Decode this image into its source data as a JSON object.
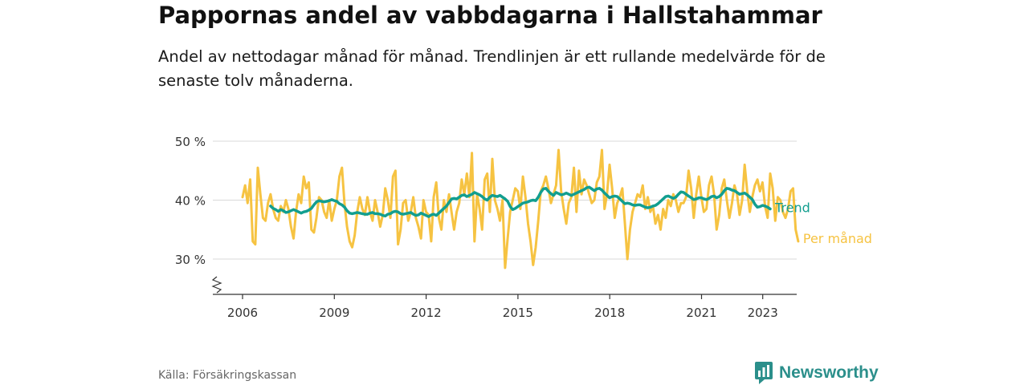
{
  "title": "Pappornas andel av vabbdagarna i Hallstahammar",
  "subtitle": "Andel av nettodagar månad för månad. Trendlinjen är ett rullande medelvärde för de senaste tolv månaderna.",
  "source": "Källa: Försäkringskassan",
  "brand": {
    "name": "Newsworthy",
    "icon": "newsworthy-logo-icon",
    "color": "#2b8f8b"
  },
  "colors": {
    "monthly": "#f6c342",
    "trend": "#129e8f",
    "grid": "#d9d9d9",
    "axis": "#333333"
  },
  "chart_data": {
    "type": "line",
    "x_unit": "year (decimal, monthly points)",
    "y_unit": "%",
    "ylim": [
      24,
      50
    ],
    "xlim": [
      2005.7,
      2024.0
    ],
    "y_ticks": [
      {
        "value": 30,
        "label": "30 %"
      },
      {
        "value": 40,
        "label": "40 %"
      },
      {
        "value": 50,
        "label": "50 %"
      }
    ],
    "x_ticks": [
      {
        "value": 2006,
        "label": "2006"
      },
      {
        "value": 2009,
        "label": "2009"
      },
      {
        "value": 2012,
        "label": "2012"
      },
      {
        "value": 2015,
        "label": "2015"
      },
      {
        "value": 2018,
        "label": "2018"
      },
      {
        "value": 2021,
        "label": "2021"
      },
      {
        "value": 2023,
        "label": "2023"
      }
    ],
    "grid": true,
    "axis_break": true,
    "series": [
      {
        "name": "Per månad",
        "key": "monthly",
        "x_start": 2006.0,
        "x_step": 0.0833,
        "values": [
          40.5,
          42.5,
          39.5,
          43.5,
          33.0,
          32.5,
          45.5,
          41.0,
          37.0,
          36.5,
          39.5,
          41.0,
          38.5,
          37.0,
          36.5,
          39.0,
          38.0,
          40.0,
          38.5,
          35.5,
          33.5,
          38.0,
          41.0,
          39.5,
          44.0,
          42.0,
          43.0,
          35.0,
          34.5,
          37.0,
          40.5,
          40.0,
          38.0,
          37.0,
          40.0,
          36.5,
          38.5,
          40.0,
          44.0,
          45.5,
          39.5,
          35.5,
          33.0,
          32.0,
          34.0,
          38.0,
          40.5,
          38.5,
          37.5,
          40.5,
          38.0,
          36.5,
          40.0,
          38.0,
          35.5,
          37.5,
          42.0,
          40.0,
          37.0,
          44.0,
          45.0,
          32.5,
          35.0,
          39.5,
          40.0,
          36.5,
          38.0,
          40.5,
          37.0,
          35.5,
          33.5,
          40.0,
          38.0,
          37.5,
          33.0,
          40.5,
          43.0,
          37.0,
          35.0,
          40.0,
          38.0,
          41.0,
          38.0,
          35.0,
          38.0,
          39.5,
          43.5,
          41.0,
          44.5,
          40.5,
          48.0,
          33.0,
          41.0,
          38.5,
          35.0,
          43.5,
          44.5,
          38.0,
          47.0,
          40.0,
          38.5,
          36.5,
          40.0,
          28.5,
          33.5,
          38.0,
          40.0,
          42.0,
          41.5,
          38.5,
          44.0,
          40.5,
          36.0,
          33.0,
          29.0,
          32.0,
          36.5,
          41.5,
          42.5,
          44.0,
          42.0,
          39.5,
          41.0,
          42.5,
          48.5,
          41.5,
          38.5,
          36.0,
          39.5,
          40.5,
          45.5,
          38.0,
          45.0,
          41.0,
          43.5,
          42.5,
          41.0,
          39.5,
          40.0,
          43.0,
          44.0,
          48.5,
          38.5,
          41.0,
          46.0,
          42.0,
          37.0,
          39.5,
          40.5,
          42.0,
          36.0,
          30.0,
          35.0,
          38.0,
          39.5,
          41.0,
          40.5,
          42.5,
          38.5,
          40.5,
          38.0,
          39.0,
          36.0,
          37.5,
          35.0,
          38.5,
          37.0,
          40.0,
          39.0,
          41.0,
          40.0,
          38.0,
          39.5,
          39.5,
          40.5,
          45.0,
          42.0,
          37.0,
          41.0,
          44.0,
          40.5,
          38.0,
          38.5,
          42.5,
          44.0,
          41.0,
          35.0,
          37.5,
          42.0,
          43.5,
          40.0,
          37.0,
          39.5,
          42.5,
          41.0,
          37.5,
          40.0,
          46.0,
          41.5,
          38.0,
          40.5,
          42.5,
          43.5,
          41.5,
          43.0,
          39.0,
          37.0,
          44.5,
          42.0,
          36.5,
          40.5,
          40.0,
          38.0,
          37.0,
          38.5,
          41.5,
          42.0,
          35.0,
          33.0
        ]
      },
      {
        "name": "Trend",
        "key": "trend",
        "x_start": 2006.9167,
        "x_step": 0.0833,
        "values": [
          39.0,
          38.6,
          38.4,
          38.1,
          38.4,
          38.2,
          37.9,
          38.0,
          38.2,
          38.4,
          38.2,
          38.0,
          37.8,
          38.0,
          38.1,
          38.3,
          38.6,
          39.2,
          39.7,
          39.9,
          39.8,
          39.7,
          39.8,
          39.9,
          40.1,
          39.9,
          39.8,
          39.4,
          39.2,
          38.8,
          38.2,
          37.8,
          37.7,
          37.8,
          37.9,
          37.8,
          37.7,
          37.6,
          37.6,
          37.8,
          37.9,
          37.7,
          37.7,
          37.6,
          37.4,
          37.3,
          37.6,
          37.7,
          38.0,
          38.1,
          38.0,
          37.7,
          37.6,
          37.7,
          37.8,
          37.9,
          37.6,
          37.4,
          37.5,
          37.8,
          37.6,
          37.4,
          37.2,
          37.5,
          37.6,
          37.4,
          37.8,
          38.2,
          38.6,
          39.0,
          39.6,
          40.2,
          40.3,
          40.2,
          40.5,
          40.8,
          40.9,
          40.6,
          40.8,
          41.0,
          41.3,
          41.1,
          40.9,
          40.6,
          40.2,
          40.0,
          40.5,
          40.8,
          40.7,
          40.6,
          40.8,
          40.5,
          40.2,
          39.8,
          38.9,
          38.4,
          38.6,
          38.9,
          39.2,
          39.5,
          39.6,
          39.7,
          39.9,
          40.0,
          39.9,
          40.5,
          41.3,
          41.9,
          42.0,
          41.5,
          41.1,
          40.8,
          41.3,
          41.1,
          40.9,
          41.0,
          41.2,
          41.0,
          40.8,
          41.0,
          41.2,
          41.4,
          41.6,
          41.8,
          42.1,
          42.2,
          41.9,
          41.6,
          41.9,
          42.0,
          41.7,
          41.2,
          40.8,
          40.4,
          40.6,
          40.7,
          40.6,
          40.2,
          39.8,
          39.4,
          39.5,
          39.4,
          39.2,
          39.1,
          39.2,
          39.2,
          39.0,
          38.8,
          38.7,
          38.8,
          39.0,
          39.1,
          39.4,
          39.8,
          40.2,
          40.6,
          40.7,
          40.5,
          40.3,
          40.5,
          41.0,
          41.4,
          41.3,
          41.0,
          40.7,
          40.4,
          40.1,
          40.2,
          40.4,
          40.4,
          40.2,
          40.1,
          40.3,
          40.6,
          40.7,
          40.4,
          40.6,
          41.0,
          41.6,
          42.0,
          41.9,
          41.7,
          41.6,
          41.3,
          41.0,
          41.1,
          41.2,
          40.9,
          40.5,
          40.1,
          39.3,
          38.8,
          38.9,
          39.1,
          39.0,
          38.8,
          38.5
        ]
      }
    ]
  }
}
